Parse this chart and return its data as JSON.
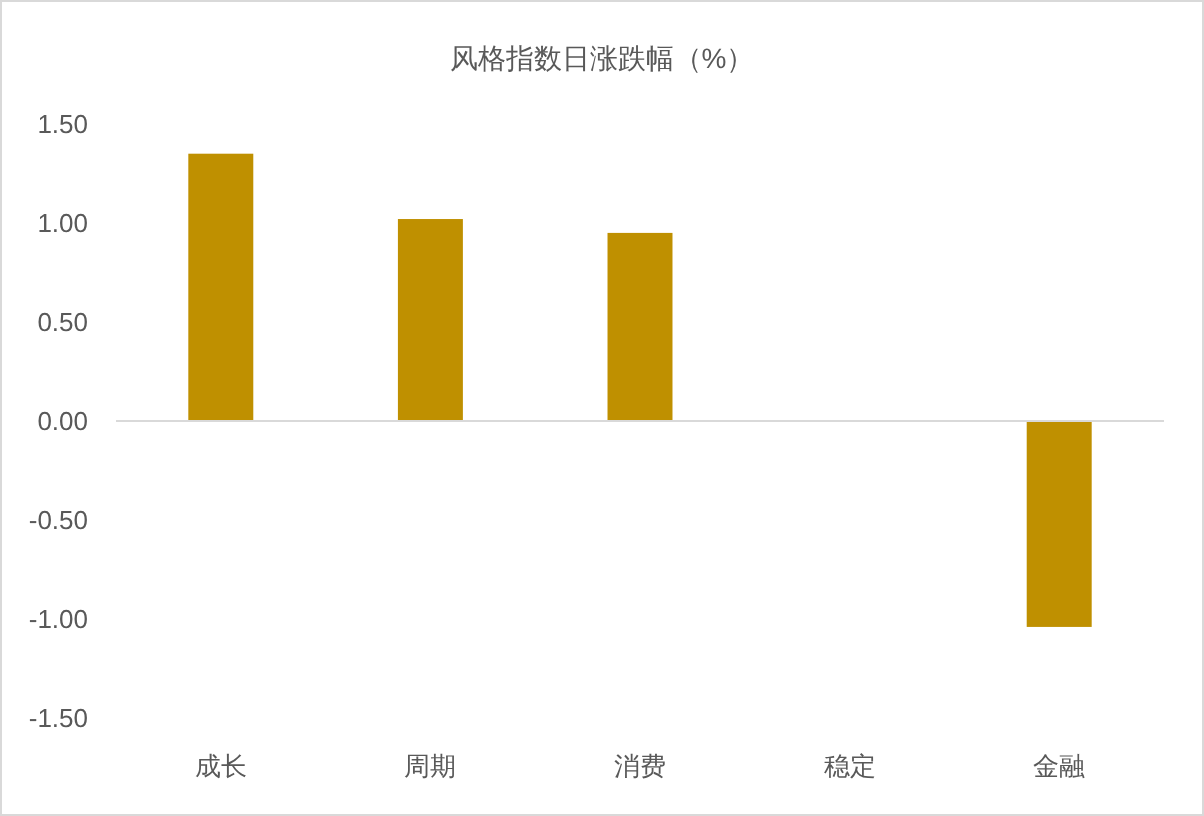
{
  "chart_data": {
    "type": "bar",
    "title": "风格指数日涨跌幅（%）",
    "categories": [
      "成长",
      "周期",
      "消费",
      "稳定",
      "金融"
    ],
    "values": [
      1.35,
      1.02,
      0.95,
      0,
      -1.04
    ],
    "color": "#bf9000",
    "ylim": [
      -1.5,
      1.5
    ],
    "yticks": [
      {
        "value": -1.5,
        "label": "-1.50"
      },
      {
        "value": -1,
        "label": "-1.00"
      },
      {
        "value": -0.5,
        "label": "-0.50"
      },
      {
        "value": 0,
        "label": "0.00"
      },
      {
        "value": 0.5,
        "label": "0.50"
      },
      {
        "value": 1,
        "label": "1.00"
      },
      {
        "value": 1.5,
        "label": "1.50"
      }
    ]
  }
}
